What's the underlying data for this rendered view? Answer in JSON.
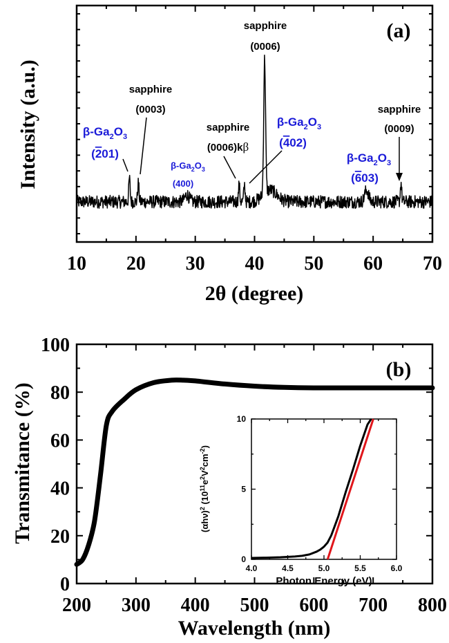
{
  "chart_data": [
    {
      "panel": "(a)",
      "type": "line",
      "xlabel_greek": "2θ",
      "xlabel_rest": " (degree)",
      "ylabel": "Intensity (a.u.)",
      "xlim": [
        10,
        70
      ],
      "xticks": [
        10,
        20,
        30,
        40,
        50,
        60,
        70
      ],
      "grid": false,
      "series": [
        {
          "baseline": 0.17,
          "peaks": [
            {
              "x": 18.9,
              "y": 0.27
            },
            {
              "x": 20.4,
              "y": 0.25
            },
            {
              "x": 28.6,
              "y": 0.2
            },
            {
              "x": 37.4,
              "y": 0.24
            },
            {
              "x": 38.3,
              "y": 0.24
            },
            {
              "x": 41.7,
              "y": 0.74
            },
            {
              "x": 58.9,
              "y": 0.22
            },
            {
              "x": 64.7,
              "y": 0.25
            }
          ]
        }
      ],
      "annotations": {
        "g201": {
          "line1_beta": "β-Ga",
          "line1_sub2": "2",
          "line1_O": "O",
          "line1_sub3": "3",
          "line2_open": "(",
          "line2_bar": "2",
          "line2_rest": "01)"
        },
        "s0003": {
          "line1": "sapphire",
          "line2": "(0003)"
        },
        "g400": {
          "line1_beta": "β-Ga",
          "line1_sub2": "2",
          "line1_O": "O",
          "line1_sub3": "3",
          "line2": "(400)"
        },
        "s0006kb": {
          "line1": "sapphire",
          "line2_main": "(0006)k",
          "line2_beta": "β"
        },
        "s0006": {
          "line1": "sapphire",
          "line2": "(0006)"
        },
        "g402": {
          "line1_beta": "β-Ga",
          "line1_sub2": "2",
          "line1_O": "O",
          "line1_sub3": "3",
          "line2_open": "(",
          "line2_bar": "4",
          "line2_rest": "02)"
        },
        "g603": {
          "line1_beta": "β-Ga",
          "line1_sub2": "2",
          "line1_O": "O",
          "line1_sub3": "3",
          "line2_open": "(",
          "line2_bar": "6",
          "line2_rest": "03)"
        },
        "s0009": {
          "line1": "sapphire",
          "line2": "(0009)"
        }
      }
    },
    {
      "panel": "(b)",
      "type": "line",
      "xlabel": "Wavelength (nm)",
      "ylabel": "Transmitance (%)",
      "xlim": [
        200,
        800
      ],
      "ylim": [
        0,
        100
      ],
      "xticks": [
        200,
        300,
        400,
        500,
        600,
        700,
        800
      ],
      "yticks": [
        0,
        20,
        40,
        60,
        80,
        100
      ],
      "grid": false,
      "series": [
        {
          "x": [
            200,
            210,
            220,
            230,
            240,
            250,
            260,
            280,
            300,
            330,
            360,
            380,
            400,
            450,
            500,
            550,
            600,
            650,
            700,
            750,
            800
          ],
          "y": [
            8,
            10,
            16,
            26,
            45,
            66,
            72,
            77,
            81,
            84,
            85,
            85,
            84.7,
            83.4,
            82.5,
            82,
            81.8,
            81.8,
            81.8,
            81.8,
            81.8
          ]
        }
      ],
      "inset": {
        "type": "line",
        "xlabel": "Photon Energy (eV)",
        "ylabel_parts": [
          "(αhν)",
          "2",
          " (10",
          "11",
          "e",
          "2",
          "V",
          "2",
          "cm",
          "-2",
          ")"
        ],
        "xlim": [
          4.0,
          6.0
        ],
        "ylim": [
          0,
          10
        ],
        "xticks": [
          "4.0",
          "4.5",
          "5.0",
          "5.5",
          "6.0"
        ],
        "yticks": [
          "0",
          "5",
          "10"
        ],
        "series": [
          {
            "name": "data",
            "x": [
              4.0,
              4.2,
              4.4,
              4.6,
              4.7,
              4.8,
              4.9,
              4.95,
              5.0,
              5.05,
              5.1,
              5.15,
              5.2,
              5.3,
              5.4,
              5.5,
              5.6,
              5.65
            ],
            "y": [
              0.1,
              0.12,
              0.15,
              0.2,
              0.25,
              0.35,
              0.55,
              0.7,
              0.9,
              1.2,
              1.7,
              2.4,
              3.1,
              4.8,
              6.4,
              8.1,
              9.6,
              10
            ]
          },
          {
            "name": "fit",
            "x": [
              5.05,
              5.68
            ],
            "y": [
              0,
              10.2
            ]
          }
        ]
      }
    }
  ],
  "colors": {
    "data": "#000000",
    "fit": "#e0161b",
    "gaO3_label": "#1a1ad8"
  }
}
